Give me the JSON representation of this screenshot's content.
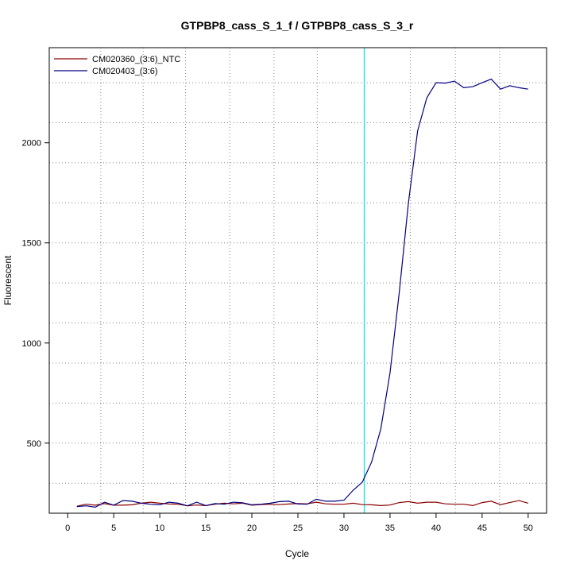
{
  "chart_data": {
    "type": "line",
    "title": "GTPBP8_cass_S_1_f / GTPBP8_cass_S_3_r",
    "xlabel": "Cycle",
    "ylabel": "Fluorescent",
    "xlim": [
      -2,
      52
    ],
    "ylim": [
      150,
      2475
    ],
    "x_ticks": [
      0,
      5,
      10,
      15,
      20,
      25,
      30,
      35,
      40,
      45,
      50
    ],
    "x_tick_labels": [
      "0",
      "5",
      "10",
      "15",
      "20",
      "25",
      "30",
      "35",
      "40",
      "45",
      "50"
    ],
    "y_ticks": [
      500,
      1000,
      1500,
      2000
    ],
    "y_tick_labels": [
      "500",
      "1000",
      "1500",
      "2000"
    ],
    "x_grid": [
      3.6,
      8.2,
      12.8,
      17.6,
      22.4,
      27.1,
      32.2,
      37.2,
      42.1,
      46.9
    ],
    "y_grid": [
      300,
      500,
      700,
      900,
      1100,
      1300,
      1500,
      1700,
      1900,
      2100,
      2300
    ],
    "grid": true,
    "legend_position": "top-left",
    "threshold_x": 32.2,
    "threshold_color": "#00e5ee",
    "x": [
      1,
      2,
      3,
      4,
      5,
      6,
      7,
      8,
      9,
      10,
      11,
      12,
      13,
      14,
      15,
      16,
      17,
      18,
      19,
      20,
      21,
      22,
      23,
      24,
      25,
      26,
      27,
      28,
      29,
      30,
      31,
      32,
      33,
      34,
      35,
      36,
      37,
      38,
      39,
      40,
      41,
      42,
      43,
      44,
      45,
      46,
      47,
      48,
      49,
      50
    ],
    "series": [
      {
        "name": "CM020360_(3:6)_NTC",
        "color": "#8b0000",
        "values": [
          185,
          195,
          190,
          198,
          190,
          190,
          192,
          200,
          205,
          200,
          196,
          195,
          187,
          191,
          188,
          195,
          200,
          197,
          200,
          190,
          193,
          195,
          193,
          196,
          198,
          197,
          205,
          197,
          195,
          195,
          200,
          193,
          192,
          188,
          191,
          203,
          208,
          200,
          205,
          205,
          197,
          195,
          195,
          188,
          203,
          210,
          193,
          203,
          213,
          200
        ]
      },
      {
        "name": "CM020403_(3:6)",
        "color": "#000080",
        "values": [
          183,
          187,
          180,
          205,
          190,
          213,
          210,
          200,
          195,
          192,
          205,
          200,
          187,
          205,
          188,
          198,
          195,
          205,
          202,
          192,
          195,
          200,
          208,
          210,
          196,
          195,
          220,
          210,
          210,
          215,
          265,
          305,
          405,
          570,
          850,
          1250,
          1700,
          2060,
          2225,
          2300,
          2298,
          2308,
          2275,
          2280,
          2300,
          2318,
          2268,
          2285,
          2275,
          2268
        ]
      }
    ]
  }
}
